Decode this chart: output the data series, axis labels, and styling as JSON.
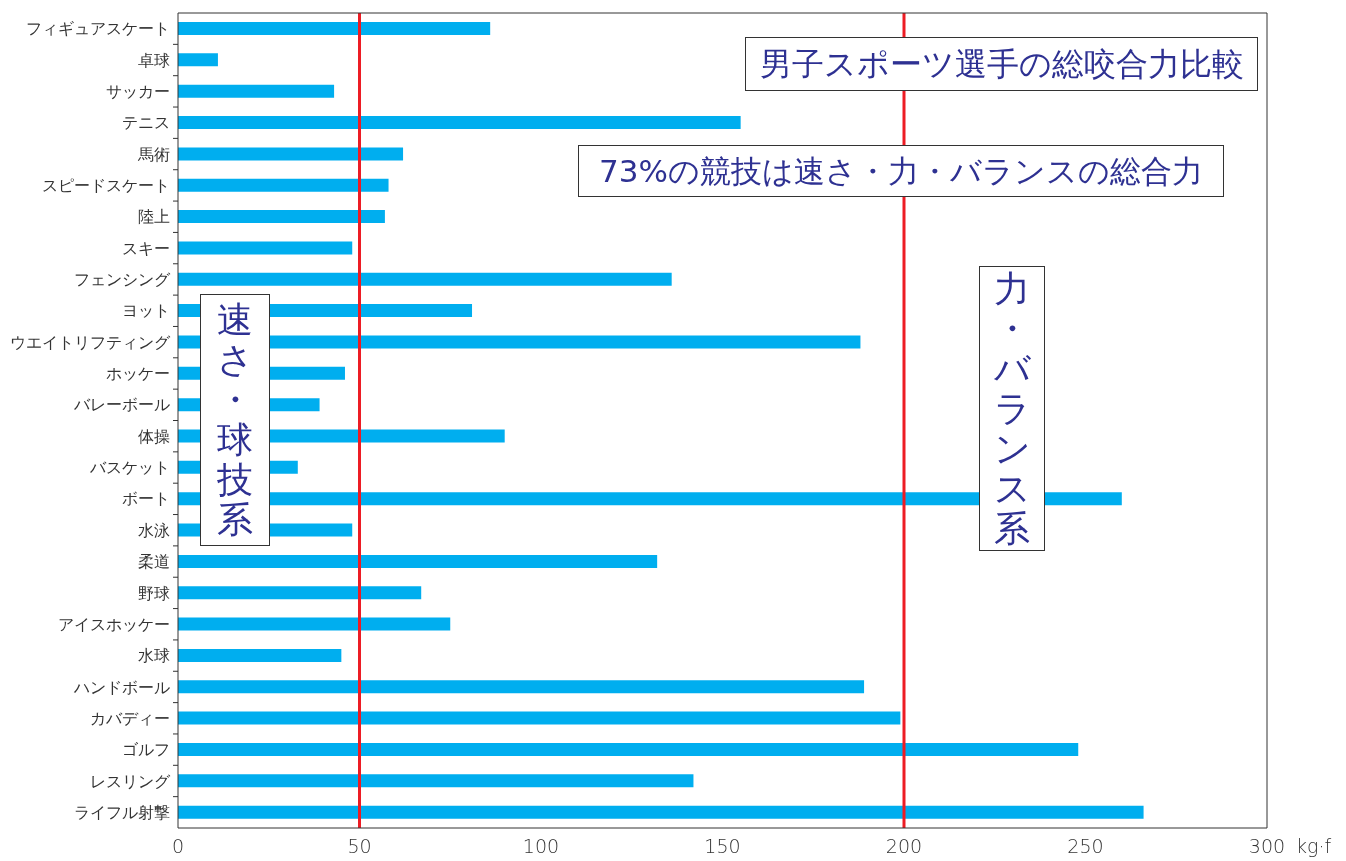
{
  "chart_data": {
    "type": "bar",
    "orientation": "horizontal",
    "title": "男子スポーツ選手の総咬合力比較",
    "xlabel": "kg·f",
    "annotations": [
      "73%の競技は速さ・力・バランスの総合力",
      "速さ・球技系",
      "力・バランス系"
    ],
    "categories": [
      "フィギュアスケート",
      "卓球",
      "サッカー",
      "テニス",
      "馬術",
      "スピードスケート",
      "陸上",
      "スキー",
      "フェンシング",
      "ヨット",
      "ウエイトリフティング",
      "ホッケー",
      "バレーボール",
      "体操",
      "バスケット",
      "ボート",
      "水泳",
      "柔道",
      "野球",
      "アイスホッケー",
      "水球",
      "ハンドボール",
      "カバディー",
      "ゴルフ",
      "レスリング",
      "ライフル射撃"
    ],
    "values": [
      86,
      11,
      43,
      155,
      62,
      58,
      57,
      48,
      136,
      81,
      188,
      46,
      39,
      90,
      33,
      260,
      48,
      132,
      67,
      75,
      45,
      189,
      199,
      248,
      142,
      266
    ],
    "color": "#00aeef",
    "xlim": [
      0,
      300
    ],
    "xticks": [
      0,
      50,
      100,
      150,
      200,
      250,
      300
    ],
    "ref_lines": [
      {
        "axis": "x",
        "value": 50,
        "color": "#ed1c24"
      },
      {
        "axis": "x",
        "value": 200,
        "color": "#ed1c24"
      }
    ]
  }
}
